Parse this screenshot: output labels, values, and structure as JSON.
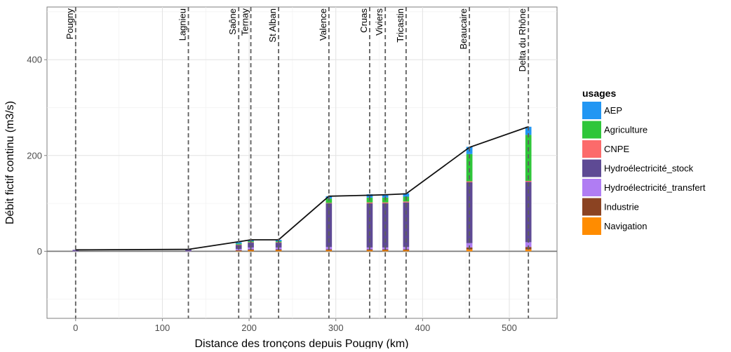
{
  "chart_data": {
    "type": "bar",
    "title": "",
    "xlabel": "Distance des tronçons depuis Pougny (km)",
    "ylabel": "Débit fictif continu (m3/s)",
    "xlim": [
      -33,
      555
    ],
    "ylim": [
      -140,
      510
    ],
    "x_ticks": [
      0,
      100,
      200,
      300,
      400,
      500
    ],
    "y_ticks": [
      0,
      200,
      400
    ],
    "grid": true,
    "legend": {
      "title": "usages",
      "position": "right",
      "entries": [
        {
          "name": "AEP",
          "color": "#2196f3"
        },
        {
          "name": "Agriculture",
          "color": "#2fc63a"
        },
        {
          "name": "CNPE",
          "color": "#fc6b6b"
        },
        {
          "name": "Hydroélectricité_stock",
          "color": "#5e4a94"
        },
        {
          "name": "Hydroélectricité_transfert",
          "color": "#b07df3"
        },
        {
          "name": "Industrie",
          "color": "#8b4322"
        },
        {
          "name": "Navigation",
          "color": "#ff8c00"
        }
      ]
    },
    "stations": [
      {
        "name": "Pougny",
        "x": 0
      },
      {
        "name": "Lagnieu",
        "x": 130
      },
      {
        "name": "Saône",
        "x": 188
      },
      {
        "name": "Ternay",
        "x": 202
      },
      {
        "name": "St Alban",
        "x": 234
      },
      {
        "name": "Valence",
        "x": 292
      },
      {
        "name": "Cruas",
        "x": 339
      },
      {
        "name": "Viviers",
        "x": 357
      },
      {
        "name": "Tricastin",
        "x": 381
      },
      {
        "name": "Beaucaire",
        "x": 454
      },
      {
        "name": "Delta du Rhône",
        "x": 522
      }
    ],
    "stacks": [
      {
        "x": 0,
        "values": {
          "AEP": 0,
          "Agriculture": 0,
          "CNPE": 0,
          "Hydroélectricité_stock": 2,
          "Hydroélectricité_transfert": 1,
          "Industrie": 0,
          "Navigation": 0
        }
      },
      {
        "x": 130,
        "values": {
          "AEP": 0,
          "Agriculture": 0,
          "CNPE": 0,
          "Hydroélectricité_stock": 3,
          "Hydroélectricité_transfert": 1,
          "Industrie": 0,
          "Navigation": 0
        }
      },
      {
        "x": 188,
        "values": {
          "AEP": 3,
          "Agriculture": 2,
          "CNPE": 1,
          "Hydroélectricité_stock": 8,
          "Hydroélectricité_transfert": 3,
          "Industrie": 1,
          "Navigation": 1
        }
      },
      {
        "x": 202,
        "values": {
          "AEP": 3,
          "Agriculture": 2,
          "CNPE": 1,
          "Hydroélectricité_stock": 10,
          "Hydroélectricité_transfert": 4,
          "Industrie": 2,
          "Navigation": 2
        }
      },
      {
        "x": 234,
        "values": {
          "AEP": 3,
          "Agriculture": 2,
          "CNPE": 1,
          "Hydroélectricité_stock": 10,
          "Hydroélectricité_transfert": 4,
          "Industrie": 2,
          "Navigation": 2
        }
      },
      {
        "x": 292,
        "values": {
          "AEP": 5,
          "Agriculture": 9,
          "CNPE": 1,
          "Hydroélectricité_stock": 91,
          "Hydroélectricité_transfert": 5,
          "Industrie": 2,
          "Navigation": 2
        }
      },
      {
        "x": 339,
        "values": {
          "AEP": 7,
          "Agriculture": 10,
          "CNPE": 2,
          "Hydroélectricité_stock": 92,
          "Hydroélectricité_transfert": 4,
          "Industrie": 2,
          "Navigation": 2
        }
      },
      {
        "x": 357,
        "values": {
          "AEP": 7,
          "Agriculture": 10,
          "CNPE": 2,
          "Hydroélectricité_stock": 92,
          "Hydroélectricité_transfert": 4,
          "Industrie": 2,
          "Navigation": 2
        }
      },
      {
        "x": 381,
        "values": {
          "AEP": 7,
          "Agriculture": 10,
          "CNPE": 2,
          "Hydroélectricité_stock": 93,
          "Hydroélectricité_transfert": 5,
          "Industrie": 2,
          "Navigation": 2
        }
      },
      {
        "x": 454,
        "values": {
          "AEP": 15,
          "Agriculture": 57,
          "CNPE": 2,
          "Hydroélectricité_stock": 127,
          "Hydroélectricité_transfert": 9,
          "Industrie": 4,
          "Navigation": 4
        }
      },
      {
        "x": 522,
        "values": {
          "AEP": 17,
          "Agriculture": 96,
          "CNPE": 2,
          "Hydroélectricité_stock": 126,
          "Hydroélectricité_transfert": 10,
          "Industrie": 5,
          "Navigation": 4
        }
      }
    ],
    "total_line": [
      {
        "x": 0,
        "y": 3
      },
      {
        "x": 130,
        "y": 4
      },
      {
        "x": 188,
        "y": 20
      },
      {
        "x": 202,
        "y": 24
      },
      {
        "x": 234,
        "y": 24
      },
      {
        "x": 292,
        "y": 115
      },
      {
        "x": 339,
        "y": 117
      },
      {
        "x": 357,
        "y": 118
      },
      {
        "x": 381,
        "y": 120
      },
      {
        "x": 454,
        "y": 217
      },
      {
        "x": 522,
        "y": 260
      }
    ]
  }
}
